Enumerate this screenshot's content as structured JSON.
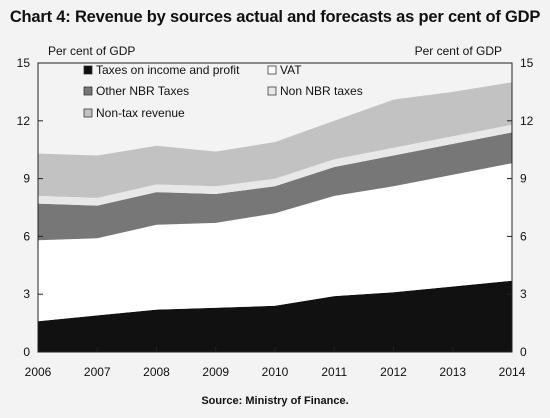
{
  "chart_data": {
    "type": "area",
    "title": "Chart 4: Revenue by sources  actual and forecasts as per cent of GDP",
    "source": "Source: Ministry of Finance.",
    "left_unit_label": "Per cent of GDP",
    "right_unit_label": "Per cent of GDP",
    "stacked": true,
    "x": [
      "2006",
      "2007",
      "2008",
      "2009",
      "2010",
      "2011",
      "2012",
      "2013",
      "2014"
    ],
    "ylim": [
      0,
      15
    ],
    "yticks": [
      0,
      3,
      6,
      9,
      12,
      15
    ],
    "grid": false,
    "series": [
      {
        "name": "Taxes on income and profit",
        "values": [
          1.6,
          1.9,
          2.2,
          2.3,
          2.4,
          2.9,
          3.1,
          3.4,
          3.7
        ],
        "color": "#111111"
      },
      {
        "name": "VAT",
        "values": [
          4.2,
          4.0,
          4.4,
          4.4,
          4.8,
          5.2,
          5.5,
          5.8,
          6.1
        ],
        "color": "#ffffff"
      },
      {
        "name": "Other NBR Taxes",
        "values": [
          1.9,
          1.7,
          1.7,
          1.5,
          1.4,
          1.5,
          1.6,
          1.6,
          1.6
        ],
        "color": "#777777"
      },
      {
        "name": "Non NBR taxes",
        "values": [
          0.4,
          0.4,
          0.4,
          0.4,
          0.4,
          0.4,
          0.4,
          0.4,
          0.4
        ],
        "color": "#e8e8e8"
      },
      {
        "name": "Non-tax revenue",
        "values": [
          2.2,
          2.2,
          2.0,
          1.8,
          1.9,
          2.0,
          2.5,
          2.3,
          2.2
        ],
        "color": "#c2c2c2"
      }
    ],
    "legend_placement": "top-left"
  }
}
